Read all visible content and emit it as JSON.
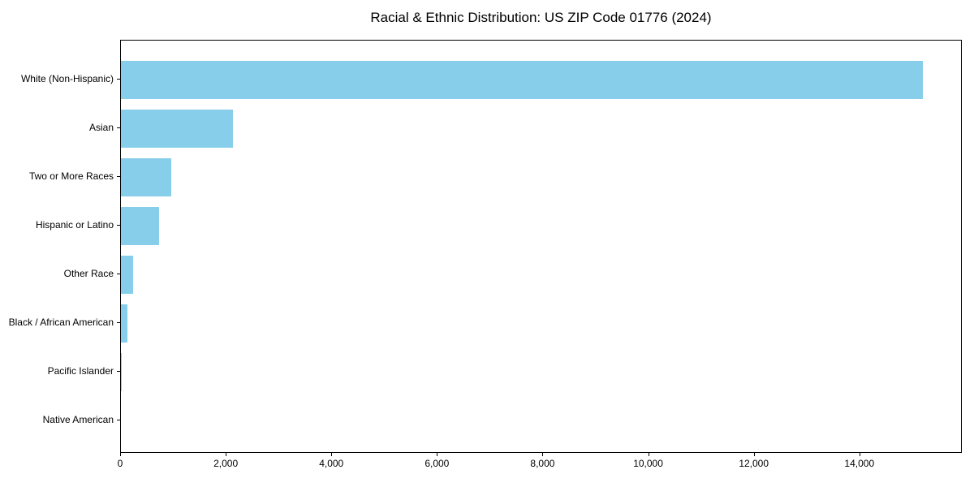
{
  "figure": {
    "background_color": "#ffffff",
    "text_color": "#000000",
    "axis_color": "#000000"
  },
  "chart_data": {
    "type": "bar",
    "orientation": "horizontal",
    "title": "Racial & Ethnic Distribution: US ZIP Code 01776 (2024)",
    "xlabel": "",
    "ylabel": "",
    "categories": [
      "White (Non-Hispanic)",
      "Asian",
      "Two or More Races",
      "Hispanic or Latino",
      "Other Race",
      "Black / African American",
      "Pacific Islander",
      "Native American"
    ],
    "values": [
      15180,
      2120,
      950,
      715,
      225,
      120,
      15,
      0
    ],
    "bar_color": "#87CEEB",
    "xlim": [
      0,
      15940
    ],
    "xticks": [
      0,
      2000,
      4000,
      6000,
      8000,
      10000,
      12000,
      14000
    ],
    "xtick_labels": [
      "0",
      "2,000",
      "4,000",
      "6,000",
      "8,000",
      "10,000",
      "12,000",
      "14,000"
    ],
    "grid": false,
    "legend": "none"
  }
}
